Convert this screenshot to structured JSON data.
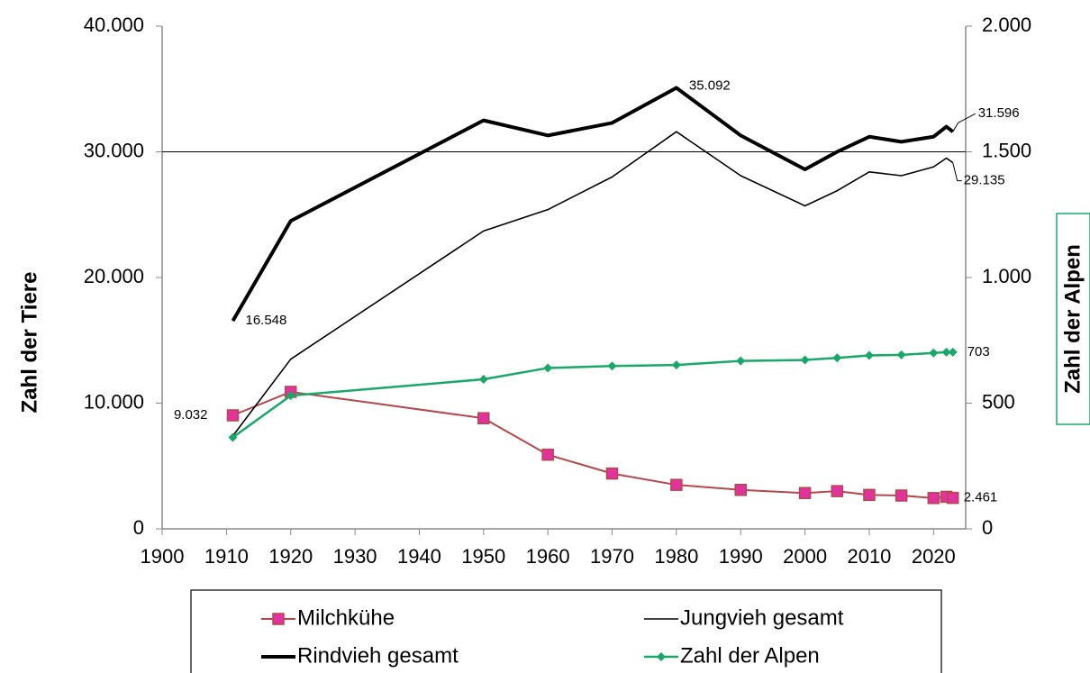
{
  "chart_data": {
    "type": "line",
    "x": [
      1911,
      1920,
      1950,
      1960,
      1970,
      1980,
      1990,
      2000,
      2005,
      2010,
      2015,
      2020,
      2022,
      2023
    ],
    "series": [
      {
        "name": "Milchkühe",
        "color": "#b5474b",
        "marker": "square",
        "marker_color": "#e0339d",
        "values": [
          9032,
          10900,
          8800,
          5900,
          4400,
          3500,
          3100,
          2850,
          3000,
          2700,
          2650,
          2450,
          2550,
          2461
        ],
        "value_labels": [
          "9.032",
          null,
          null,
          null,
          null,
          null,
          null,
          null,
          null,
          null,
          null,
          null,
          null,
          "2.461"
        ]
      },
      {
        "name": "Jungvieh gesamt",
        "color": "#000000",
        "values": [
          7400,
          13500,
          23700,
          25400,
          28000,
          31600,
          28100,
          25700,
          26900,
          28400,
          28100,
          28800,
          29500,
          29135
        ],
        "value_labels": [
          null,
          null,
          null,
          null,
          null,
          null,
          null,
          null,
          null,
          null,
          null,
          null,
          null,
          "29.135"
        ]
      },
      {
        "name": "Rindvieh gesamt",
        "color": "#000000",
        "values": [
          16548,
          24500,
          32500,
          31300,
          32300,
          35092,
          31300,
          28600,
          30000,
          31200,
          30800,
          31200,
          32000,
          31596
        ],
        "value_labels": [
          "16.548",
          null,
          null,
          null,
          null,
          "35.092",
          null,
          null,
          null,
          null,
          null,
          null,
          null,
          "31.596"
        ]
      },
      {
        "name": "Zahl der Alpen",
        "color": "#1aa86a",
        "marker": "diamond",
        "axis": "y2",
        "values": [
          364,
          530,
          595,
          640,
          648,
          652,
          668,
          672,
          680,
          690,
          692,
          700,
          703,
          703
        ],
        "value_labels": [
          null,
          null,
          null,
          null,
          null,
          null,
          null,
          null,
          null,
          null,
          null,
          null,
          null,
          "703"
        ]
      }
    ],
    "y_label": "Zahl der Tiere",
    "y2_label": "Zahl der Alpen",
    "xlim": [
      1900,
      2025
    ],
    "xticks": [
      1900,
      1910,
      1920,
      1930,
      1940,
      1950,
      1960,
      1970,
      1980,
      1990,
      2000,
      2010,
      2020
    ],
    "ylim": [
      0,
      40000
    ],
    "yticks": [
      0,
      {
        "value": 10000,
        "label": "10.000"
      },
      {
        "value": 20000,
        "label": "20.000"
      },
      {
        "value": 30000,
        "label": "30.000"
      },
      {
        "value": 40000,
        "label": "40.000"
      }
    ],
    "y2lim": [
      0,
      2000
    ],
    "y2ticks": [
      0,
      500,
      {
        "value": 1000,
        "label": "1.000"
      },
      {
        "value": 1500,
        "label": "1.500"
      },
      {
        "value": 2000,
        "label": "2.000"
      }
    ],
    "legend": "bottom"
  }
}
